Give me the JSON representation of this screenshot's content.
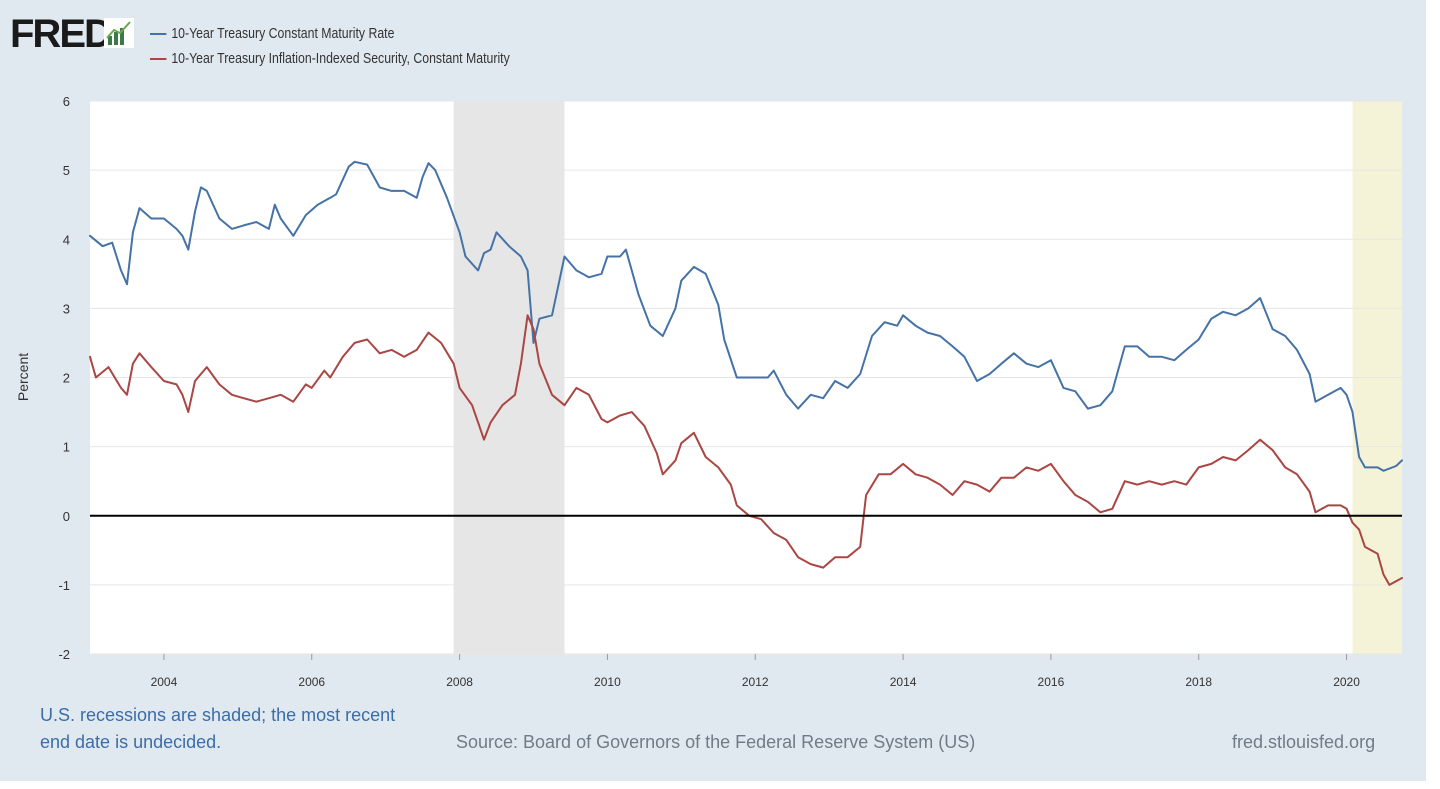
{
  "header": {
    "logo_text": "FRED",
    "legend": [
      {
        "label": "10-Year Treasury Constant Maturity Rate",
        "color": "#4572a7"
      },
      {
        "label": "10-Year Treasury Inflation-Indexed Security, Constant Maturity",
        "color": "#aa4643"
      }
    ]
  },
  "footer": {
    "note_line1": "U.S. recessions are shaded; the most recent",
    "note_line2": "end date is undecided.",
    "source": "Source: Board of Governors of the Federal Reserve System (US)",
    "site": "fred.stlouisfed.org"
  },
  "colors": {
    "frame_bg": "#e1e9f0",
    "plot_bg": "#ffffff",
    "recession_shade": "#e6e6e6",
    "current_recession_shade": "#f5f3d7",
    "zero_line": "#000000",
    "grid": "#e6e6e6"
  },
  "chart_data": {
    "type": "line",
    "title": "",
    "xlabel": "",
    "ylabel": "Percent",
    "xlim": [
      2003.0,
      2020.75
    ],
    "ylim": [
      -2,
      6
    ],
    "y_ticks": [
      -2,
      -1,
      0,
      1,
      2,
      3,
      4,
      5,
      6
    ],
    "x_ticks": [
      2004,
      2006,
      2008,
      2010,
      2012,
      2014,
      2016,
      2018,
      2020
    ],
    "x_tick_labels": [
      "2004",
      "2006",
      "2008",
      "2010",
      "2012",
      "2014",
      "2016",
      "2018",
      "2020"
    ],
    "recessions": [
      {
        "start": 2007.92,
        "end": 2009.42,
        "status": "ended"
      },
      {
        "start": 2020.08,
        "end": 2020.75,
        "status": "undecided"
      }
    ],
    "series": [
      {
        "name": "10-Year Treasury Constant Maturity Rate",
        "color": "#4572a7",
        "points": [
          [
            2003.0,
            4.05
          ],
          [
            2003.17,
            3.9
          ],
          [
            2003.3,
            3.95
          ],
          [
            2003.42,
            3.55
          ],
          [
            2003.5,
            3.35
          ],
          [
            2003.58,
            4.1
          ],
          [
            2003.67,
            4.45
          ],
          [
            2003.83,
            4.3
          ],
          [
            2004.0,
            4.3
          ],
          [
            2004.17,
            4.15
          ],
          [
            2004.25,
            4.05
          ],
          [
            2004.33,
            3.85
          ],
          [
            2004.42,
            4.4
          ],
          [
            2004.5,
            4.75
          ],
          [
            2004.58,
            4.7
          ],
          [
            2004.75,
            4.3
          ],
          [
            2004.92,
            4.15
          ],
          [
            2005.08,
            4.2
          ],
          [
            2005.25,
            4.25
          ],
          [
            2005.42,
            4.15
          ],
          [
            2005.5,
            4.5
          ],
          [
            2005.58,
            4.3
          ],
          [
            2005.75,
            4.05
          ],
          [
            2005.92,
            4.35
          ],
          [
            2006.08,
            4.5
          ],
          [
            2006.25,
            4.6
          ],
          [
            2006.33,
            4.65
          ],
          [
            2006.5,
            5.05
          ],
          [
            2006.58,
            5.12
          ],
          [
            2006.75,
            5.08
          ],
          [
            2006.92,
            4.75
          ],
          [
            2007.08,
            4.7
          ],
          [
            2007.25,
            4.7
          ],
          [
            2007.42,
            4.6
          ],
          [
            2007.5,
            4.9
          ],
          [
            2007.58,
            5.1
          ],
          [
            2007.67,
            5.0
          ],
          [
            2007.83,
            4.6
          ],
          [
            2008.0,
            4.1
          ],
          [
            2008.08,
            3.75
          ],
          [
            2008.25,
            3.55
          ],
          [
            2008.33,
            3.8
          ],
          [
            2008.42,
            3.85
          ],
          [
            2008.5,
            4.1
          ],
          [
            2008.67,
            3.9
          ],
          [
            2008.83,
            3.75
          ],
          [
            2008.92,
            3.55
          ],
          [
            2009.0,
            2.5
          ],
          [
            2009.08,
            2.85
          ],
          [
            2009.25,
            2.9
          ],
          [
            2009.33,
            3.3
          ],
          [
            2009.42,
            3.75
          ],
          [
            2009.58,
            3.55
          ],
          [
            2009.75,
            3.45
          ],
          [
            2009.92,
            3.5
          ],
          [
            2010.0,
            3.75
          ],
          [
            2010.17,
            3.75
          ],
          [
            2010.25,
            3.85
          ],
          [
            2010.42,
            3.2
          ],
          [
            2010.58,
            2.75
          ],
          [
            2010.75,
            2.6
          ],
          [
            2010.92,
            3.0
          ],
          [
            2011.0,
            3.4
          ],
          [
            2011.17,
            3.6
          ],
          [
            2011.33,
            3.5
          ],
          [
            2011.5,
            3.05
          ],
          [
            2011.58,
            2.55
          ],
          [
            2011.75,
            2.0
          ],
          [
            2011.92,
            2.0
          ],
          [
            2012.0,
            2.0
          ],
          [
            2012.17,
            2.0
          ],
          [
            2012.25,
            2.1
          ],
          [
            2012.42,
            1.75
          ],
          [
            2012.58,
            1.55
          ],
          [
            2012.75,
            1.75
          ],
          [
            2012.92,
            1.7
          ],
          [
            2013.08,
            1.95
          ],
          [
            2013.25,
            1.85
          ],
          [
            2013.42,
            2.05
          ],
          [
            2013.58,
            2.6
          ],
          [
            2013.75,
            2.8
          ],
          [
            2013.92,
            2.75
          ],
          [
            2014.0,
            2.9
          ],
          [
            2014.17,
            2.75
          ],
          [
            2014.33,
            2.65
          ],
          [
            2014.5,
            2.6
          ],
          [
            2014.67,
            2.45
          ],
          [
            2014.83,
            2.3
          ],
          [
            2015.0,
            1.95
          ],
          [
            2015.17,
            2.05
          ],
          [
            2015.33,
            2.2
          ],
          [
            2015.5,
            2.35
          ],
          [
            2015.67,
            2.2
          ],
          [
            2015.83,
            2.15
          ],
          [
            2016.0,
            2.25
          ],
          [
            2016.17,
            1.85
          ],
          [
            2016.33,
            1.8
          ],
          [
            2016.5,
            1.55
          ],
          [
            2016.67,
            1.6
          ],
          [
            2016.83,
            1.8
          ],
          [
            2017.0,
            2.45
          ],
          [
            2017.17,
            2.45
          ],
          [
            2017.33,
            2.3
          ],
          [
            2017.5,
            2.3
          ],
          [
            2017.67,
            2.25
          ],
          [
            2017.83,
            2.4
          ],
          [
            2018.0,
            2.55
          ],
          [
            2018.17,
            2.85
          ],
          [
            2018.33,
            2.95
          ],
          [
            2018.5,
            2.9
          ],
          [
            2018.67,
            3.0
          ],
          [
            2018.83,
            3.15
          ],
          [
            2019.0,
            2.7
          ],
          [
            2019.17,
            2.6
          ],
          [
            2019.33,
            2.4
          ],
          [
            2019.5,
            2.05
          ],
          [
            2019.58,
            1.65
          ],
          [
            2019.75,
            1.75
          ],
          [
            2019.92,
            1.85
          ],
          [
            2020.0,
            1.75
          ],
          [
            2020.08,
            1.5
          ],
          [
            2020.17,
            0.85
          ],
          [
            2020.25,
            0.7
          ],
          [
            2020.42,
            0.7
          ],
          [
            2020.5,
            0.65
          ],
          [
            2020.67,
            0.72
          ],
          [
            2020.75,
            0.8
          ]
        ]
      },
      {
        "name": "10-Year Treasury Inflation-Indexed Security, Constant Maturity",
        "color": "#aa4643",
        "points": [
          [
            2003.0,
            2.3
          ],
          [
            2003.08,
            2.0
          ],
          [
            2003.25,
            2.15
          ],
          [
            2003.42,
            1.85
          ],
          [
            2003.5,
            1.75
          ],
          [
            2003.58,
            2.2
          ],
          [
            2003.67,
            2.35
          ],
          [
            2003.83,
            2.15
          ],
          [
            2004.0,
            1.95
          ],
          [
            2004.17,
            1.9
          ],
          [
            2004.25,
            1.75
          ],
          [
            2004.33,
            1.5
          ],
          [
            2004.42,
            1.95
          ],
          [
            2004.58,
            2.15
          ],
          [
            2004.75,
            1.9
          ],
          [
            2004.92,
            1.75
          ],
          [
            2005.08,
            1.7
          ],
          [
            2005.25,
            1.65
          ],
          [
            2005.42,
            1.7
          ],
          [
            2005.58,
            1.75
          ],
          [
            2005.75,
            1.65
          ],
          [
            2005.92,
            1.9
          ],
          [
            2006.0,
            1.85
          ],
          [
            2006.17,
            2.1
          ],
          [
            2006.25,
            2.0
          ],
          [
            2006.42,
            2.3
          ],
          [
            2006.58,
            2.5
          ],
          [
            2006.75,
            2.55
          ],
          [
            2006.92,
            2.35
          ],
          [
            2007.08,
            2.4
          ],
          [
            2007.25,
            2.3
          ],
          [
            2007.42,
            2.4
          ],
          [
            2007.58,
            2.65
          ],
          [
            2007.75,
            2.5
          ],
          [
            2007.92,
            2.2
          ],
          [
            2008.0,
            1.85
          ],
          [
            2008.17,
            1.6
          ],
          [
            2008.25,
            1.35
          ],
          [
            2008.33,
            1.1
          ],
          [
            2008.42,
            1.35
          ],
          [
            2008.58,
            1.6
          ],
          [
            2008.75,
            1.75
          ],
          [
            2008.83,
            2.2
          ],
          [
            2008.92,
            2.9
          ],
          [
            2009.0,
            2.7
          ],
          [
            2009.08,
            2.2
          ],
          [
            2009.25,
            1.75
          ],
          [
            2009.42,
            1.6
          ],
          [
            2009.58,
            1.85
          ],
          [
            2009.75,
            1.75
          ],
          [
            2009.92,
            1.4
          ],
          [
            2010.0,
            1.35
          ],
          [
            2010.17,
            1.45
          ],
          [
            2010.33,
            1.5
          ],
          [
            2010.5,
            1.3
          ],
          [
            2010.67,
            0.9
          ],
          [
            2010.75,
            0.6
          ],
          [
            2010.92,
            0.8
          ],
          [
            2011.0,
            1.05
          ],
          [
            2011.17,
            1.2
          ],
          [
            2011.33,
            0.85
          ],
          [
            2011.5,
            0.7
          ],
          [
            2011.67,
            0.45
          ],
          [
            2011.75,
            0.15
          ],
          [
            2011.92,
            0.0
          ],
          [
            2012.08,
            -0.05
          ],
          [
            2012.25,
            -0.25
          ],
          [
            2012.42,
            -0.35
          ],
          [
            2012.58,
            -0.6
          ],
          [
            2012.75,
            -0.7
          ],
          [
            2012.92,
            -0.75
          ],
          [
            2013.08,
            -0.6
          ],
          [
            2013.25,
            -0.6
          ],
          [
            2013.42,
            -0.45
          ],
          [
            2013.5,
            0.3
          ],
          [
            2013.67,
            0.6
          ],
          [
            2013.83,
            0.6
          ],
          [
            2014.0,
            0.75
          ],
          [
            2014.17,
            0.6
          ],
          [
            2014.33,
            0.55
          ],
          [
            2014.5,
            0.45
          ],
          [
            2014.67,
            0.3
          ],
          [
            2014.83,
            0.5
          ],
          [
            2015.0,
            0.45
          ],
          [
            2015.17,
            0.35
          ],
          [
            2015.33,
            0.55
          ],
          [
            2015.5,
            0.55
          ],
          [
            2015.67,
            0.7
          ],
          [
            2015.83,
            0.65
          ],
          [
            2016.0,
            0.75
          ],
          [
            2016.17,
            0.5
          ],
          [
            2016.33,
            0.3
          ],
          [
            2016.5,
            0.2
          ],
          [
            2016.67,
            0.05
          ],
          [
            2016.83,
            0.1
          ],
          [
            2017.0,
            0.5
          ],
          [
            2017.17,
            0.45
          ],
          [
            2017.33,
            0.5
          ],
          [
            2017.5,
            0.45
          ],
          [
            2017.67,
            0.5
          ],
          [
            2017.83,
            0.45
          ],
          [
            2018.0,
            0.7
          ],
          [
            2018.17,
            0.75
          ],
          [
            2018.33,
            0.85
          ],
          [
            2018.5,
            0.8
          ],
          [
            2018.67,
            0.95
          ],
          [
            2018.83,
            1.1
          ],
          [
            2019.0,
            0.95
          ],
          [
            2019.17,
            0.7
          ],
          [
            2019.33,
            0.6
          ],
          [
            2019.5,
            0.35
          ],
          [
            2019.58,
            0.05
          ],
          [
            2019.75,
            0.15
          ],
          [
            2019.92,
            0.15
          ],
          [
            2020.0,
            0.1
          ],
          [
            2020.08,
            -0.1
          ],
          [
            2020.17,
            -0.2
          ],
          [
            2020.25,
            -0.45
          ],
          [
            2020.42,
            -0.55
          ],
          [
            2020.5,
            -0.85
          ],
          [
            2020.58,
            -1.0
          ],
          [
            2020.75,
            -0.9
          ]
        ]
      }
    ]
  }
}
